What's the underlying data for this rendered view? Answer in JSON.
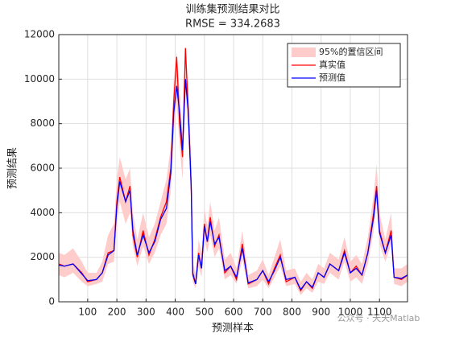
{
  "chart_data": {
    "type": "line",
    "title": "训练集预测结果对比",
    "subtitle": "RMSE = 334.2683",
    "x_label": "预测样本",
    "y_label": "预测结果",
    "watermark": "公众号 · 天天Matlab",
    "xlim": [
      1,
      1196
    ],
    "ylim": [
      0,
      12000
    ],
    "xticks": [
      100,
      200,
      300,
      400,
      500,
      600,
      700,
      800,
      900,
      1000,
      1100
    ],
    "yticks": [
      0,
      2000,
      4000,
      6000,
      8000,
      10000,
      12000
    ],
    "grid": true,
    "legend": "northeast",
    "x": [
      1,
      20,
      50,
      80,
      100,
      130,
      150,
      170,
      190,
      200,
      210,
      230,
      245,
      255,
      270,
      290,
      310,
      330,
      350,
      370,
      385,
      395,
      405,
      415,
      425,
      435,
      445,
      455,
      460,
      470,
      480,
      490,
      500,
      510,
      520,
      535,
      550,
      570,
      590,
      610,
      630,
      650,
      680,
      700,
      720,
      740,
      760,
      780,
      810,
      830,
      850,
      870,
      890,
      910,
      930,
      960,
      980,
      1000,
      1020,
      1040,
      1060,
      1080,
      1090,
      1100,
      1120,
      1140,
      1150,
      1175,
      1196
    ],
    "interval": {
      "name": "95%的置信区间",
      "color": "#ffcccc",
      "lower": [
        1200,
        1100,
        1300,
        900,
        700,
        800,
        900,
        1700,
        1800,
        3500,
        4500,
        3500,
        4000,
        2500,
        1600,
        2500,
        1700,
        2200,
        3000,
        3500,
        5000,
        7500,
        9000,
        7000,
        5500,
        9500,
        7500,
        4500,
        900,
        600,
        1600,
        1100,
        2800,
        2200,
        3000,
        2000,
        2400,
        1000,
        1200,
        800,
        1900,
        600,
        700,
        1000,
        600,
        1100,
        1600,
        700,
        800,
        300,
        600,
        400,
        900,
        800,
        1300,
        1000,
        1800,
        900,
        1100,
        800,
        1700,
        3200,
        4500,
        2600,
        1800,
        2600,
        800,
        700,
        900
      ],
      "upper": [
        2200,
        2100,
        2400,
        1800,
        1300,
        1300,
        1800,
        3000,
        3500,
        5500,
        6500,
        5500,
        6000,
        4000,
        2800,
        4000,
        2900,
        3500,
        4500,
        5500,
        7000,
        10000,
        11200,
        9500,
        7500,
        11500,
        9500,
        6500,
        1800,
        1200,
        2800,
        2200,
        4200,
        3400,
        4500,
        3200,
        3800,
        1900,
        2200,
        1500,
        3200,
        1200,
        1400,
        1900,
        1200,
        2000,
        2800,
        1400,
        1500,
        900,
        1300,
        1000,
        1700,
        1500,
        2200,
        1900,
        2900,
        1800,
        2100,
        1700,
        2900,
        4800,
        6200,
        4000,
        2800,
        4000,
        1500,
        1500,
        1700
      ]
    },
    "series": [
      {
        "name": "真实值",
        "color": "#ff0000",
        "values": [
          1700,
          1600,
          1700,
          1300,
          900,
          1000,
          1300,
          2200,
          2300,
          4500,
          5600,
          4500,
          5200,
          3000,
          2000,
          3200,
          2100,
          2800,
          3800,
          4500,
          6000,
          9000,
          11000,
          8000,
          6500,
          11400,
          8500,
          5000,
          1200,
          800,
          2200,
          1500,
          3500,
          2700,
          3800,
          2500,
          3000,
          1300,
          1600,
          1000,
          2600,
          800,
          1000,
          1400,
          800,
          1500,
          2100,
          900,
          1100,
          500,
          900,
          600,
          1300,
          1100,
          1700,
          1400,
          2300,
          1300,
          1600,
          1200,
          2200,
          4000,
          5200,
          3200,
          2200,
          3200,
          1100,
          1000,
          1200
        ]
      },
      {
        "name": "预测值",
        "color": "#0000ff",
        "values": [
          1650,
          1600,
          1700,
          1250,
          950,
          1000,
          1300,
          2100,
          2300,
          4300,
          5400,
          4500,
          5000,
          3200,
          2100,
          3000,
          2200,
          2700,
          3700,
          4200,
          5800,
          8500,
          9700,
          8500,
          6800,
          10000,
          8500,
          5100,
          1300,
          800,
          2100,
          1500,
          3400,
          2700,
          3600,
          2600,
          2900,
          1400,
          1600,
          1100,
          2400,
          850,
          1000,
          1400,
          900,
          1400,
          2000,
          1000,
          1100,
          550,
          900,
          650,
          1300,
          1100,
          1700,
          1400,
          2200,
          1300,
          1500,
          1200,
          2200,
          3800,
          5000,
          3100,
          2200,
          3000,
          1100,
          1050,
          1200
        ]
      }
    ]
  }
}
